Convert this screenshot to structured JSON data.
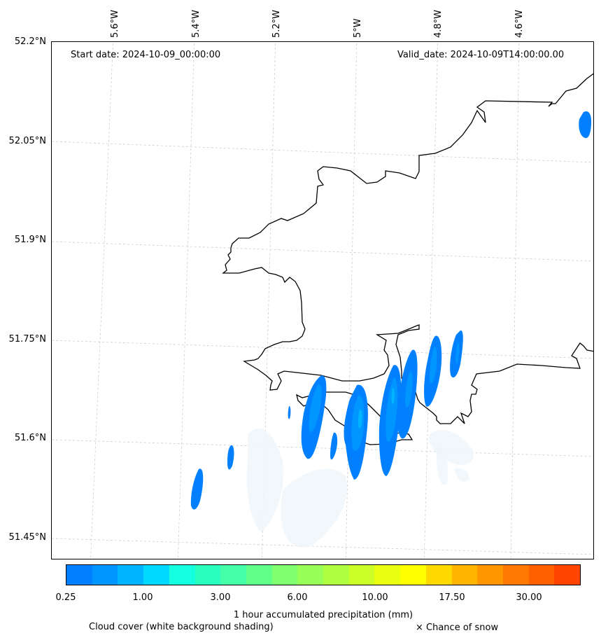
{
  "header": {
    "start_date": "Start date: 2024-10-09_00:00:00",
    "valid_date": "Valid_date: 2024-10-09T14:00:00.00"
  },
  "axes": {
    "longitude_labels": [
      "5.6°W",
      "5.4°W",
      "5.2°W",
      "5°W",
      "4.8°W",
      "4.6°W"
    ],
    "latitude_labels": [
      "52.2°N",
      "52.05°N",
      "51.9°N",
      "51.75°N",
      "51.6°N",
      "51.45°N"
    ]
  },
  "colorbar": {
    "title": "1 hour accumulated precipitation (mm)",
    "tick_labels": [
      "0.25",
      "1.00",
      "3.00",
      "6.00",
      "10.00",
      "17.50",
      "30.00"
    ],
    "colors": [
      "#0080ff",
      "#0096ff",
      "#00b4ff",
      "#00d8ff",
      "#14ffe0",
      "#2bffc0",
      "#45ffa8",
      "#60ff88",
      "#80ff70",
      "#98ff58",
      "#b0ff40",
      "#ccff28",
      "#e8ff10",
      "#ffff00",
      "#ffd800",
      "#ffb400",
      "#ff9600",
      "#ff7800",
      "#ff6000",
      "#ff4400"
    ]
  },
  "legend": {
    "cloud_cover": "Cloud cover (white background shading)",
    "snow": "× Chance of snow"
  },
  "layers": {
    "coastline_color": "#000000",
    "cloud_color": "#eef6fa",
    "precip_colors": [
      "#0080ff",
      "#0096ff",
      "#00b4ff"
    ]
  }
}
